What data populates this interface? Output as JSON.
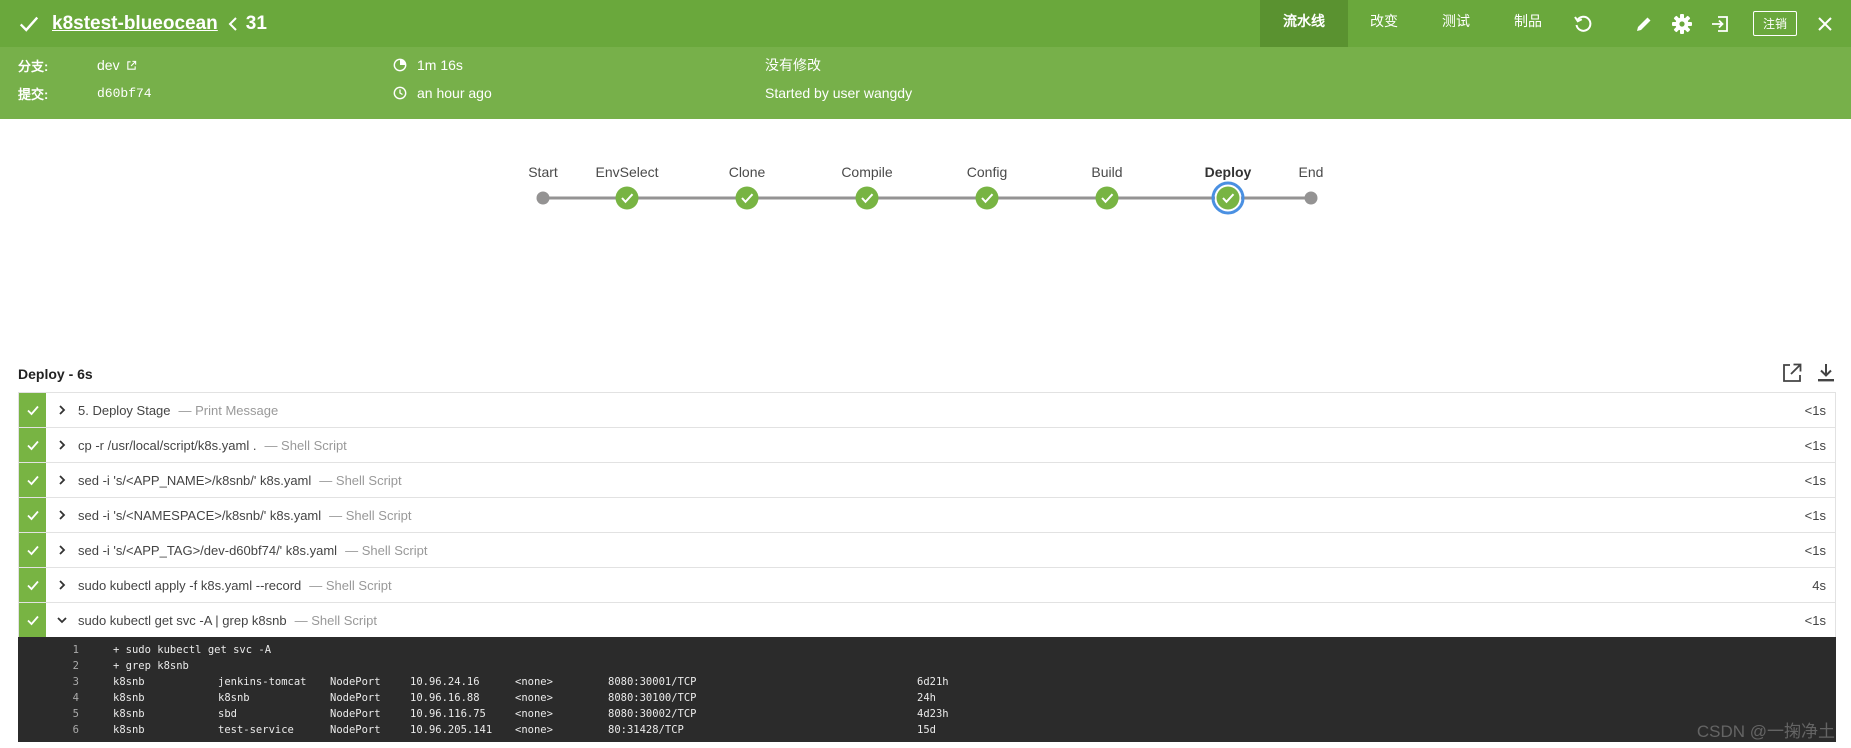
{
  "header": {
    "job_title": "k8stest-blueocean",
    "run_number": "31",
    "tabs": [
      "流水线",
      "改变",
      "测试",
      "制品"
    ],
    "logout_label": "注销"
  },
  "summary": {
    "branch_label": "分支:",
    "branch_value": "dev",
    "commit_label": "提交:",
    "commit_value": "d60bf74",
    "duration": "1m 16s",
    "time_ago": "an hour ago",
    "changes": "没有修改",
    "started_by": "Started by user wangdy"
  },
  "pipeline": {
    "stages": [
      {
        "label": "Start",
        "status": "none"
      },
      {
        "label": "EnvSelect",
        "status": "success"
      },
      {
        "label": "Clone",
        "status": "success"
      },
      {
        "label": "Compile",
        "status": "success"
      },
      {
        "label": "Config",
        "status": "success"
      },
      {
        "label": "Build",
        "status": "success"
      },
      {
        "label": "Deploy",
        "status": "success-selected"
      },
      {
        "label": "End",
        "status": "none"
      }
    ]
  },
  "panel": {
    "title": "Deploy - 6s",
    "steps": [
      {
        "name": "5. Deploy Stage",
        "desc": "— Print Message",
        "duration": "<1s",
        "expanded": false
      },
      {
        "name": "cp -r /usr/local/script/k8s.yaml .",
        "desc": "— Shell Script",
        "duration": "<1s",
        "expanded": false
      },
      {
        "name": "sed -i 's/<APP_NAME>/k8snb/' k8s.yaml",
        "desc": "— Shell Script",
        "duration": "<1s",
        "expanded": false
      },
      {
        "name": "sed -i 's/<NAMESPACE>/k8snb/' k8s.yaml",
        "desc": "— Shell Script",
        "duration": "<1s",
        "expanded": false
      },
      {
        "name": "sed -i 's/<APP_TAG>/dev-d60bf74/' k8s.yaml",
        "desc": "— Shell Script",
        "duration": "<1s",
        "expanded": false
      },
      {
        "name": "sudo kubectl apply -f k8s.yaml --record",
        "desc": "— Shell Script",
        "duration": "4s",
        "expanded": false
      },
      {
        "name": "sudo kubectl get svc -A | grep k8snb",
        "desc": "— Shell Script",
        "duration": "<1s",
        "expanded": true
      }
    ]
  },
  "log": {
    "lines": [
      {
        "n": "1",
        "cols": [
          "+ sudo kubectl get svc -A"
        ]
      },
      {
        "n": "2",
        "cols": [
          "+ grep k8snb"
        ]
      },
      {
        "n": "3",
        "cols": [
          "k8snb",
          "jenkins-tomcat",
          "NodePort",
          "10.96.24.16",
          "<none>",
          "8080:30001/TCP",
          "6d21h"
        ]
      },
      {
        "n": "4",
        "cols": [
          "k8snb",
          "k8snb",
          "NodePort",
          "10.96.16.88",
          "<none>",
          "8080:30100/TCP",
          "24h"
        ]
      },
      {
        "n": "5",
        "cols": [
          "k8snb",
          "sbd",
          "NodePort",
          "10.96.116.75",
          "<none>",
          "8080:30002/TCP",
          "4d23h"
        ]
      },
      {
        "n": "6",
        "cols": [
          "k8snb",
          "test-service",
          "NodePort",
          "10.96.205.141",
          "<none>",
          "80:31428/TCP",
          "15d"
        ]
      }
    ]
  },
  "watermark": "CSDN @一掬净土",
  "colors": {
    "header_bg": "#6aa83c",
    "summary_bg": "#77b04a",
    "success": "#78b443",
    "selected_ring": "#4a90e2",
    "log_bg": "#2b2b2b"
  },
  "icons": {
    "header": [
      "check-icon",
      "chevron-left-icon"
    ],
    "toolbar": [
      "replay-icon",
      "pencil-icon",
      "gear-icon",
      "exit-icon",
      "close-icon"
    ],
    "summary": [
      "external-link-icon",
      "stopwatch-icon",
      "clock-icon"
    ],
    "panel": [
      "open-external-icon",
      "download-icon",
      "check-icon",
      "chevron-right-icon",
      "chevron-down-icon"
    ]
  }
}
